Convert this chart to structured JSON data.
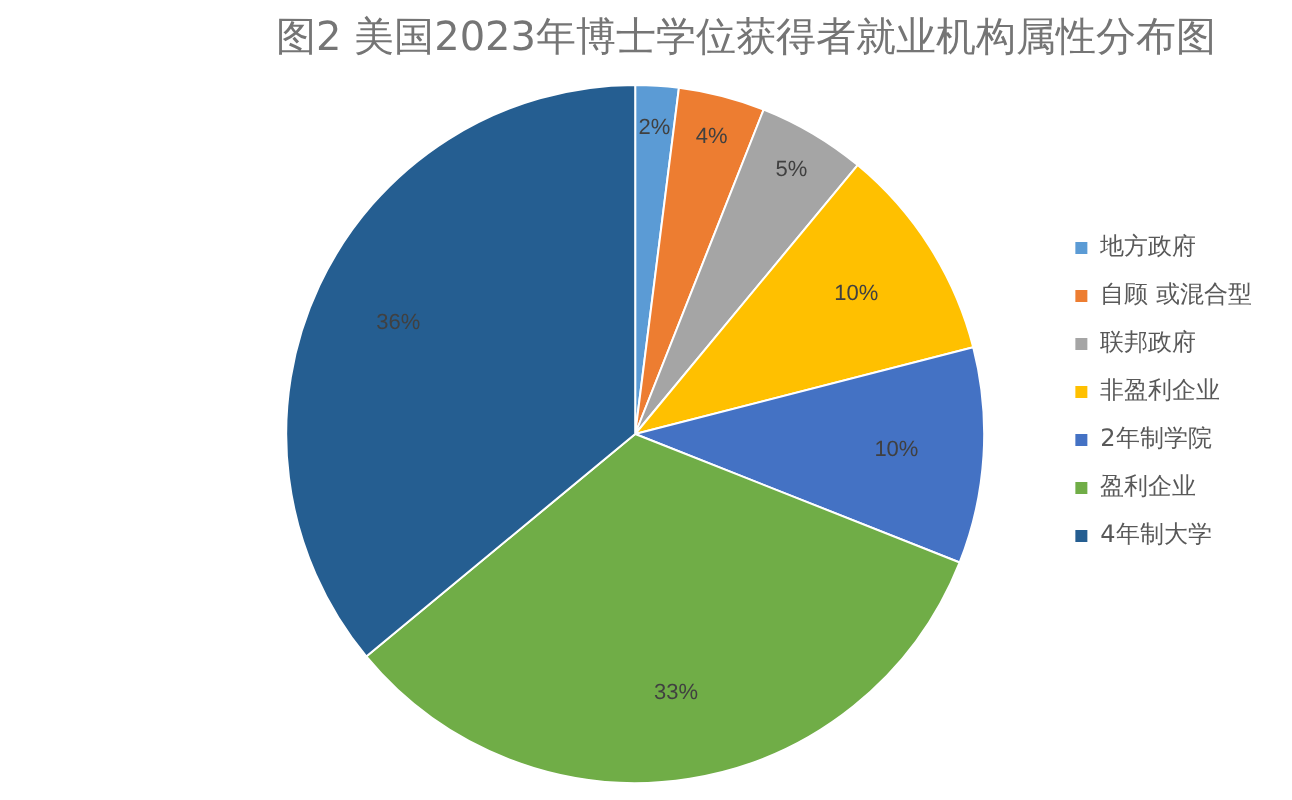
{
  "chart_data": {
    "type": "pie",
    "title": "图2 美国2023年博士学位获得者就业机构属性分布图",
    "categories": [
      "地方政府",
      "自顾 或混合型",
      "联邦政府",
      "非盈利企业",
      "2年制学院",
      "盈利企业",
      "4年制大学"
    ],
    "values": [
      2,
      4,
      5,
      10,
      10,
      33,
      36
    ],
    "colors": [
      "#5b9bd5",
      "#ed7d31",
      "#a5a5a5",
      "#ffc000",
      "#4472c4",
      "#70ad47",
      "#255e91"
    ],
    "value_labels": [
      "2%",
      "4%",
      "5%",
      "10%",
      "10%",
      "33%",
      "36%"
    ],
    "legend": "right"
  }
}
